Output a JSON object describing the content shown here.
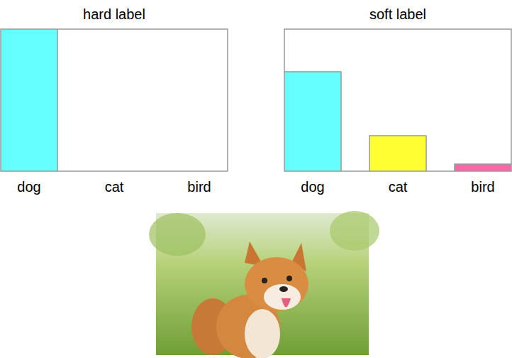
{
  "chart_data": [
    {
      "type": "bar",
      "title": "hard label",
      "categories": [
        "dog",
        "cat",
        "bird"
      ],
      "values": [
        1,
        0,
        0
      ],
      "colors": [
        "#66ffff",
        "#ffff33",
        "#ff66aa"
      ],
      "ylim": [
        0,
        1
      ],
      "tick_labels": "x"
    },
    {
      "type": "bar",
      "title": "soft label",
      "categories": [
        "dog",
        "cat",
        "bird"
      ],
      "values": [
        0.7,
        0.25,
        0.05
      ],
      "colors": [
        "#66ffff",
        "#ffff33",
        "#ff66aa"
      ],
      "ylim": [
        0,
        1
      ],
      "tick_labels": "x"
    }
  ]
}
